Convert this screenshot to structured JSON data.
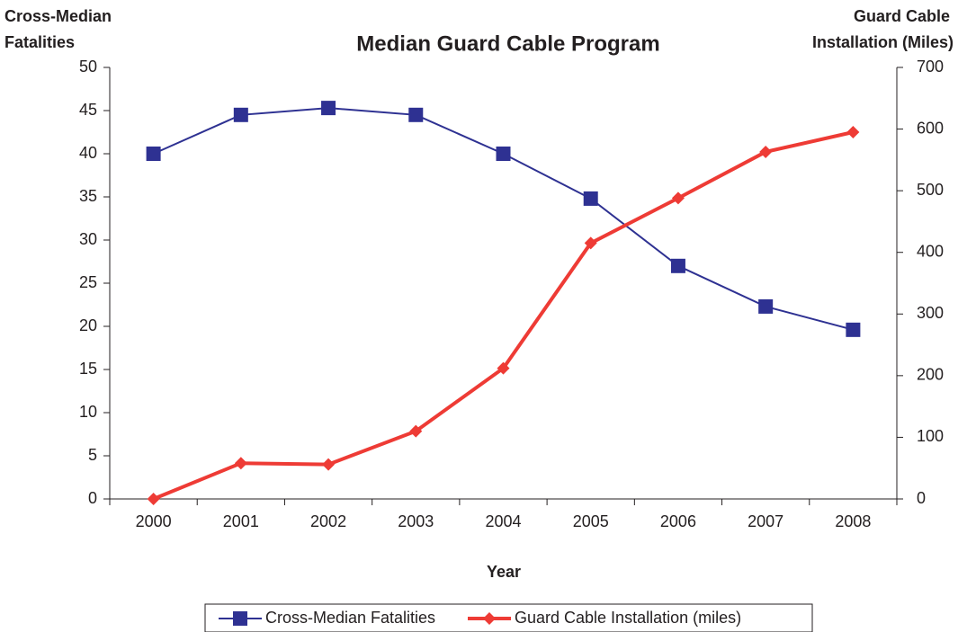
{
  "chart_data": {
    "type": "line",
    "title": "Median Guard Cable Program",
    "xlabel": "Year",
    "ylabel": [
      "Cross-Median",
      "Fatalities"
    ],
    "y2label": [
      "Guard Cable",
      "Installation (Miles)"
    ],
    "categories": [
      "2000",
      "2001",
      "2002",
      "2003",
      "2004",
      "2005",
      "2006",
      "2007",
      "2008"
    ],
    "series": [
      {
        "name": "Cross-Median Fatalities",
        "color": "#2e3192",
        "marker": "square",
        "values": [
          40,
          44.5,
          45.3,
          44.5,
          40,
          34.8,
          27,
          22.3,
          19.6
        ]
      },
      {
        "name": "Guard Cable Installation (miles)",
        "color": "#ee3b35",
        "marker": "diamond",
        "axis": "y2",
        "values": [
          0,
          58,
          56,
          110,
          212,
          415,
          488,
          563,
          595
        ]
      }
    ],
    "ylim": [
      0,
      50
    ],
    "yticks": [
      0,
      5,
      10,
      15,
      20,
      25,
      30,
      35,
      40,
      45,
      50
    ],
    "y2lim": [
      0,
      700
    ],
    "y2ticks": [
      0,
      100,
      200,
      300,
      400,
      500,
      600,
      700
    ],
    "grid": false,
    "legend": "bottom"
  }
}
